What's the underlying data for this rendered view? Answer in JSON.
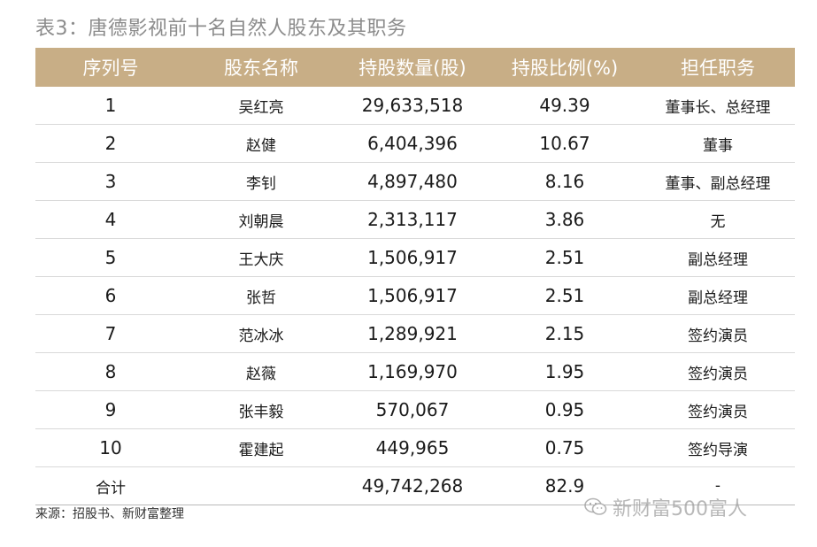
{
  "title": "表3：唐德影视前十名自然人股东及其职务",
  "columns": [
    "序列号",
    "股东名称",
    "持股数量(股)",
    "持股比例(%)",
    "担任职务"
  ],
  "rows": [
    {
      "no": "1",
      "name": "吴红亮",
      "shares": "29,633,518",
      "pct": "49.39",
      "role": "董事长、总经理"
    },
    {
      "no": "2",
      "name": "赵健",
      "shares": "6,404,396",
      "pct": "10.67",
      "role": "董事"
    },
    {
      "no": "3",
      "name": "李钊",
      "shares": "4,897,480",
      "pct": "8.16",
      "role": "董事、副总经理"
    },
    {
      "no": "4",
      "name": "刘朝晨",
      "shares": "2,313,117",
      "pct": "3.86",
      "role": "无"
    },
    {
      "no": "5",
      "name": "王大庆",
      "shares": "1,506,917",
      "pct": "2.51",
      "role": "副总经理"
    },
    {
      "no": "6",
      "name": "张哲",
      "shares": "1,506,917",
      "pct": "2.51",
      "role": "副总经理"
    },
    {
      "no": "7",
      "name": "范冰冰",
      "shares": "1,289,921",
      "pct": "2.15",
      "role": "签约演员"
    },
    {
      "no": "8",
      "name": "赵薇",
      "shares": "1,169,970",
      "pct": "1.95",
      "role": "签约演员"
    },
    {
      "no": "9",
      "name": "张丰毅",
      "shares": "570,067",
      "pct": "0.95",
      "role": "签约演员"
    },
    {
      "no": "10",
      "name": "霍建起",
      "shares": "449,965",
      "pct": "0.75",
      "role": "签约导演"
    }
  ],
  "total": {
    "label": "合计",
    "name": "",
    "shares": "49,742,268",
    "pct": "82.9",
    "role": "-"
  },
  "source": "来源：招股书、新财富整理",
  "watermark": {
    "icon": "wechat-icon",
    "text": "新财富500富人"
  },
  "colors": {
    "header_bg": "#c8ae86",
    "title": "#8c8c8c"
  }
}
